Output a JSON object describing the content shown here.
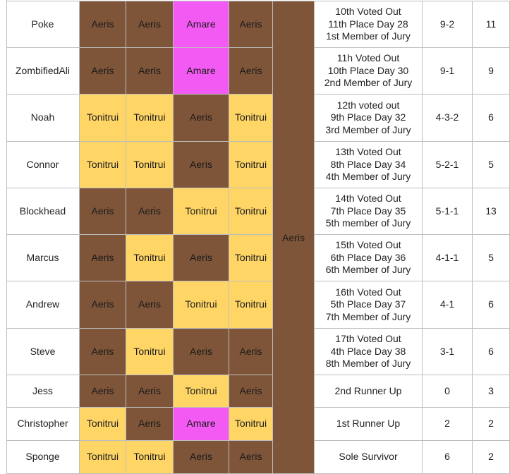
{
  "final_vote": "Aeris",
  "rows": [
    {
      "name": "Poke",
      "votes": [
        {
          "v": "Aeris",
          "c": "aeris"
        },
        {
          "v": "Aeris",
          "c": "aeris"
        },
        {
          "v": "Amare",
          "c": "amare"
        },
        {
          "v": "Aeris",
          "c": "aeris"
        }
      ],
      "finish": [
        "10th Voted Out",
        "11th Place Day 28",
        "1st Member of Jury"
      ],
      "vote_count": "9-2",
      "stat": "11"
    },
    {
      "name": "ZombifiedAli",
      "votes": [
        {
          "v": "Aeris",
          "c": "aeris"
        },
        {
          "v": "Aeris",
          "c": "aeris"
        },
        {
          "v": "Amare",
          "c": "amare"
        },
        {
          "v": "Aeris",
          "c": "aeris"
        }
      ],
      "finish": [
        "11h Voted Out",
        "10th Place Day 30",
        "2nd Member of Jury"
      ],
      "vote_count": "9-1",
      "stat": "9"
    },
    {
      "name": "Noah",
      "votes": [
        {
          "v": "Tonitrui",
          "c": "ton"
        },
        {
          "v": "Tonitrui",
          "c": "ton"
        },
        {
          "v": "Aeris",
          "c": "aeris"
        },
        {
          "v": "Tonitrui",
          "c": "ton"
        }
      ],
      "finish": [
        "12th voted out",
        "9th Place Day 32",
        "3rd Member of Jury"
      ],
      "vote_count": "4-3-2",
      "stat": "6"
    },
    {
      "name": "Connor",
      "votes": [
        {
          "v": "Tonitrui",
          "c": "ton"
        },
        {
          "v": "Tonitrui",
          "c": "ton"
        },
        {
          "v": "Aeris",
          "c": "aeris"
        },
        {
          "v": "Tonitrui",
          "c": "ton"
        }
      ],
      "finish": [
        "13th Voted Out",
        "8th Place Day 34",
        "4th Member of Jury"
      ],
      "vote_count": "5-2-1",
      "stat": "5"
    },
    {
      "name": "Blockhead",
      "votes": [
        {
          "v": "Aeris",
          "c": "aeris"
        },
        {
          "v": "Aeris",
          "c": "aeris"
        },
        {
          "v": "Tonitrui",
          "c": "ton"
        },
        {
          "v": "Tonitrui",
          "c": "ton"
        }
      ],
      "finish": [
        "14th Voted Out",
        "7th Place Day 35",
        "5th member of Jury"
      ],
      "vote_count": "5-1-1",
      "stat": "13"
    },
    {
      "name": "Marcus",
      "votes": [
        {
          "v": "Aeris",
          "c": "aeris"
        },
        {
          "v": "Tonitrui",
          "c": "ton"
        },
        {
          "v": "Aeris",
          "c": "aeris"
        },
        {
          "v": "Tonitrui",
          "c": "ton"
        }
      ],
      "finish": [
        "15th Voted Out",
        "6th Place Day 36",
        "6th Member of Jury"
      ],
      "vote_count": "4-1-1",
      "stat": "5"
    },
    {
      "name": "Andrew",
      "votes": [
        {
          "v": "Aeris",
          "c": "aeris"
        },
        {
          "v": "Aeris",
          "c": "aeris"
        },
        {
          "v": "Tonitrui",
          "c": "ton"
        },
        {
          "v": "Tonitrui",
          "c": "ton"
        }
      ],
      "finish": [
        "16th Voted Out",
        "5th Place Day 37",
        "7th Member of Jury"
      ],
      "vote_count": "4-1",
      "stat": "6"
    },
    {
      "name": "Steve",
      "votes": [
        {
          "v": "Aeris",
          "c": "aeris"
        },
        {
          "v": "Tonitrui",
          "c": "ton"
        },
        {
          "v": "Aeris",
          "c": "aeris"
        },
        {
          "v": "Aeris",
          "c": "aeris"
        }
      ],
      "finish": [
        "17th Voted Out",
        "4th Place Day 38",
        "8th Member of Jury"
      ],
      "vote_count": "3-1",
      "stat": "6"
    },
    {
      "name": "Jess",
      "votes": [
        {
          "v": "Aeris",
          "c": "aeris"
        },
        {
          "v": "Aeris",
          "c": "aeris"
        },
        {
          "v": "Tonitrui",
          "c": "ton"
        },
        {
          "v": "Aeris",
          "c": "aeris"
        }
      ],
      "finish": [
        "2nd Runner Up"
      ],
      "vote_count": "0",
      "stat": "3"
    },
    {
      "name": "Christopher",
      "votes": [
        {
          "v": "Tonitrui",
          "c": "ton"
        },
        {
          "v": "Aeris",
          "c": "aeris"
        },
        {
          "v": "Amare",
          "c": "amare"
        },
        {
          "v": "Tonitrui",
          "c": "ton"
        }
      ],
      "finish": [
        "1st Runner Up"
      ],
      "vote_count": "2",
      "stat": "2"
    },
    {
      "name": "Sponge",
      "votes": [
        {
          "v": "Tonitrui",
          "c": "ton"
        },
        {
          "v": "Tonitrui",
          "c": "ton"
        },
        {
          "v": "Aeris",
          "c": "aeris"
        },
        {
          "v": "Aeris",
          "c": "aeris"
        }
      ],
      "finish": [
        "Sole Survivor"
      ],
      "vote_count": "6",
      "stat": "2"
    }
  ]
}
